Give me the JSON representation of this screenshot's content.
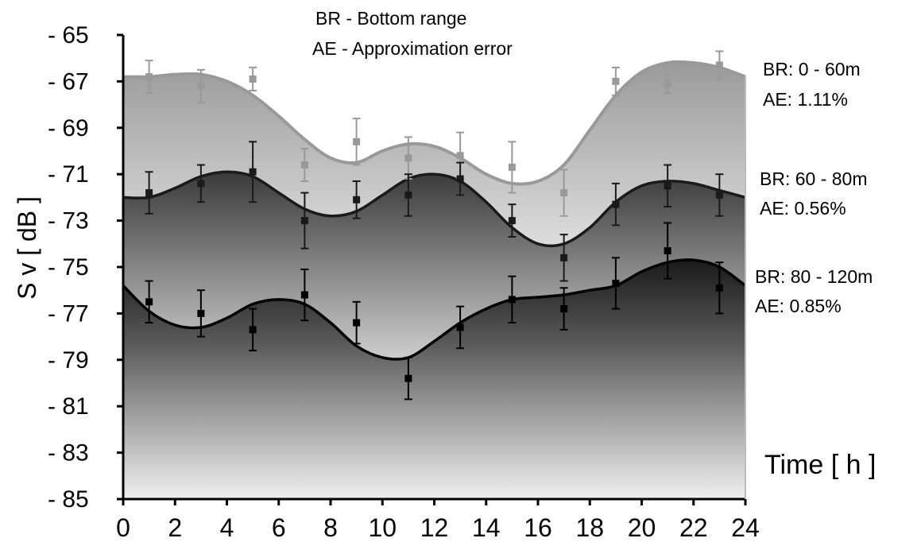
{
  "chart_data": {
    "type": "line",
    "title": "",
    "xlabel": "Time [ h ]",
    "ylabel": "S v [ dB ]",
    "xlim": [
      0,
      24
    ],
    "ylim": [
      -85,
      -65
    ],
    "x_ticks": [
      0,
      2,
      4,
      6,
      8,
      10,
      12,
      14,
      16,
      18,
      20,
      22,
      24
    ],
    "y_ticks": [
      -65,
      -67,
      -69,
      -71,
      -73,
      -75,
      -77,
      -79,
      -81,
      -83,
      -85
    ],
    "y_tick_labels": [
      "- 65",
      "- 67",
      "- 69",
      "- 71",
      "- 73",
      "- 75",
      "- 77",
      "- 79",
      "- 81",
      "- 83",
      "- 85"
    ],
    "grid": false,
    "legend": {
      "position": "top-center",
      "entries": [
        "BR - Bottom range",
        "AE - Approximation error"
      ]
    },
    "series": [
      {
        "br_label": "BR: 0 - 60m",
        "ae_label": "AE:  1.11%",
        "color": "#999999",
        "fit_x": [
          0,
          1,
          2,
          3,
          4,
          5,
          6,
          7,
          8,
          9,
          10,
          11,
          12,
          13,
          14,
          15,
          16,
          17,
          18,
          19,
          20,
          21,
          22,
          23,
          24
        ],
        "fit_y": [
          -66.8,
          -66.8,
          -66.7,
          -66.7,
          -67.0,
          -67.6,
          -68.5,
          -69.5,
          -70.3,
          -70.5,
          -70.0,
          -69.7,
          -69.8,
          -70.3,
          -71.0,
          -71.4,
          -71.3,
          -70.6,
          -69.1,
          -67.6,
          -66.6,
          -66.2,
          -66.2,
          -66.4,
          -66.8
        ],
        "points_x": [
          1,
          3,
          5,
          7,
          9,
          11,
          13,
          15,
          17,
          19,
          21,
          23
        ],
        "points_y": [
          -66.8,
          -67.2,
          -66.9,
          -70.6,
          -69.6,
          -70.3,
          -70.2,
          -70.7,
          -71.8,
          -67.0,
          -67.1,
          -66.3
        ],
        "errors": [
          0.7,
          0.7,
          0.5,
          0.7,
          1.0,
          0.9,
          1.0,
          1.1,
          1.0,
          0.6,
          0.4,
          0.6
        ]
      },
      {
        "br_label": "BR: 60 - 80m",
        "ae_label": "AE: 0.56%",
        "color": "#1a1a1a",
        "fit_x": [
          0,
          1,
          2,
          3,
          4,
          5,
          6,
          7,
          8,
          9,
          10,
          11,
          12,
          13,
          14,
          15,
          16,
          17,
          18,
          19,
          20,
          21,
          22,
          23,
          24
        ],
        "fit_y": [
          -72.0,
          -72.0,
          -71.6,
          -71.1,
          -70.9,
          -71.1,
          -71.8,
          -72.5,
          -72.8,
          -72.6,
          -71.9,
          -71.2,
          -71.0,
          -71.3,
          -72.2,
          -73.3,
          -74.0,
          -74.0,
          -73.3,
          -72.2,
          -71.5,
          -71.3,
          -71.4,
          -71.7,
          -72.0
        ],
        "points_x": [
          1,
          3,
          5,
          7,
          9,
          11,
          13,
          15,
          17,
          19,
          21,
          23
        ],
        "points_y": [
          -71.8,
          -71.4,
          -70.9,
          -73.0,
          -72.1,
          -71.9,
          -71.2,
          -73.0,
          -74.6,
          -72.3,
          -71.5,
          -71.9
        ],
        "errors": [
          0.9,
          0.8,
          1.3,
          1.2,
          0.8,
          0.9,
          0.7,
          0.7,
          1.0,
          0.9,
          0.9,
          0.9
        ]
      },
      {
        "br_label": "BR: 80 - 120m",
        "ae_label": "AE: 0.85%",
        "color": "#000000",
        "fit_x": [
          0,
          1,
          2,
          3,
          4,
          5,
          6,
          7,
          8,
          9,
          10,
          11,
          12,
          13,
          14,
          15,
          16,
          17,
          18,
          19,
          20,
          21,
          22,
          23,
          24
        ],
        "fit_y": [
          -75.8,
          -76.9,
          -77.5,
          -77.6,
          -77.2,
          -76.6,
          -76.4,
          -76.6,
          -77.4,
          -78.4,
          -78.9,
          -78.9,
          -78.2,
          -77.4,
          -76.8,
          -76.4,
          -76.3,
          -76.2,
          -76.0,
          -75.8,
          -75.2,
          -74.8,
          -74.7,
          -75.0,
          -75.8
        ],
        "points_x": [
          1,
          3,
          5,
          7,
          9,
          11,
          13,
          15,
          17,
          19,
          21,
          23
        ],
        "points_y": [
          -76.5,
          -77.0,
          -77.7,
          -76.2,
          -77.4,
          -79.8,
          -77.6,
          -76.4,
          -76.8,
          -75.7,
          -74.3,
          -75.9
        ],
        "errors": [
          0.9,
          1.0,
          0.9,
          1.1,
          0.9,
          0.9,
          0.9,
          1.0,
          0.9,
          1.1,
          1.2,
          1.1
        ]
      }
    ]
  }
}
